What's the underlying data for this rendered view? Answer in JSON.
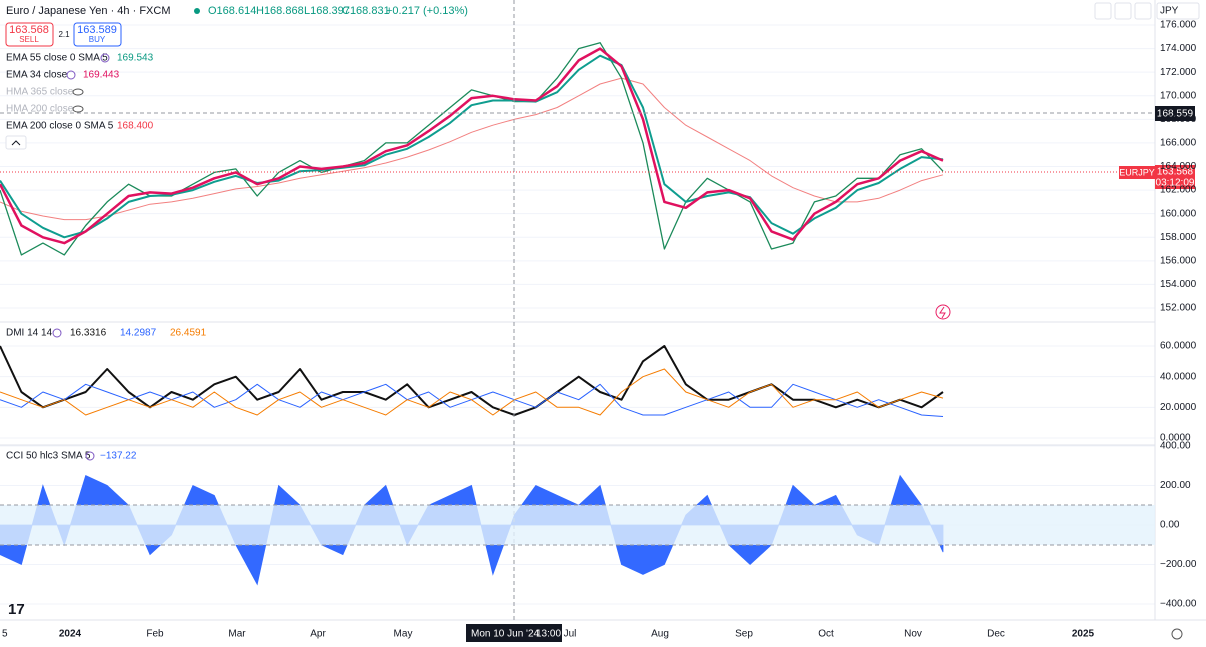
{
  "header": {
    "symbol": "Euro / Japanese Yen · 4h · FXCM",
    "open": "O168.614",
    "high": "H168.868",
    "low": "L168.397",
    "close": "C168.831",
    "change": "+0.217 (+0.13%)"
  },
  "trade": {
    "sell_price": "163.568",
    "sell": "SELL",
    "spread": "2.1",
    "buy_price": "163.589",
    "buy": "BUY"
  },
  "indicators": [
    {
      "label": "EMA 55 close 0 SMA 5",
      "value": "169.543"
    },
    {
      "label": "EMA 34 close",
      "value": "169.443"
    },
    {
      "label": "HMA 365 close"
    },
    {
      "label": "HMA 200 close"
    },
    {
      "label": "EMA 200 close 0 SMA 5",
      "value": "168.400"
    }
  ],
  "currency": "JPY",
  "price_pane": {
    "ticks": [
      {
        "value": 176,
        "label": "176.000"
      },
      {
        "value": 174,
        "label": "174.000"
      },
      {
        "value": 172,
        "label": "172.000"
      },
      {
        "value": 170,
        "label": "170.000"
      },
      {
        "value": 168,
        "label": "168.000"
      },
      {
        "value": 166,
        "label": "166.000"
      },
      {
        "value": 164,
        "label": "164.000"
      },
      {
        "value": 162,
        "label": "162.000"
      },
      {
        "value": 160,
        "label": "160.000"
      },
      {
        "value": 158,
        "label": "158.000"
      },
      {
        "value": 156,
        "label": "156.000"
      },
      {
        "value": 154,
        "label": "154.000"
      },
      {
        "value": 152,
        "label": "152.000"
      }
    ],
    "series": [
      {
        "color": "#f28080",
        "values": [
          161,
          160.2,
          159.8,
          159.5,
          159.5,
          159.8,
          160.3,
          160.8,
          161,
          161.3,
          161.7,
          162.1,
          162.3,
          162.6,
          163,
          163.3,
          163.6,
          163.9,
          164.3,
          164.8,
          165.4,
          166.1,
          166.9,
          167.5,
          168,
          168.4,
          169,
          170,
          171,
          171.5,
          171,
          169,
          167.5,
          166.5,
          165.5,
          164.5,
          163.2,
          162.2,
          161.5,
          161,
          161,
          161.3,
          162,
          162.8,
          163.3
        ]
      },
      {
        "color": "#1b8a5a",
        "values": [
          162,
          156.5,
          157.5,
          156.5,
          159,
          161,
          162.5,
          161.5,
          161.5,
          162.5,
          163.5,
          163.8,
          161.5,
          163.5,
          164.5,
          163.5,
          164,
          164.5,
          166,
          166,
          167.5,
          169,
          170.5,
          170,
          169.5,
          169.5,
          171.5,
          174,
          174.5,
          171.5,
          166,
          157,
          161,
          163,
          162,
          161,
          157,
          157.5,
          161,
          161.5,
          163,
          163,
          165,
          165.5,
          163.6
        ]
      },
      {
        "color": "#0f9d8f",
        "values": [
          162.8,
          160,
          158.8,
          158,
          158.5,
          159.6,
          161,
          161.5,
          161.6,
          162,
          162.7,
          163.2,
          162.6,
          162.8,
          163.6,
          163.7,
          163.9,
          164.1,
          165,
          165.5,
          166.5,
          167.7,
          169.2,
          169.6,
          169.6,
          169.5,
          170.3,
          172.2,
          173.4,
          172.6,
          169,
          162.5,
          161,
          161.5,
          161.8,
          161.4,
          159.2,
          158.3,
          159.6,
          160.5,
          162,
          162.6,
          163.8,
          164.8,
          164.6
        ]
      },
      {
        "color": "#e0115f",
        "values": [
          162.5,
          159,
          158,
          157.5,
          158.5,
          160,
          161.5,
          161.8,
          161.7,
          162.2,
          163,
          163.5,
          162.5,
          163,
          164,
          163.8,
          164,
          164.3,
          165.3,
          165.8,
          167,
          168.3,
          169.8,
          170,
          169.7,
          169.6,
          170.8,
          173,
          174,
          172.5,
          168,
          161,
          160.5,
          161.8,
          162,
          161.3,
          158.5,
          157.8,
          160,
          161,
          162.5,
          163,
          164.5,
          165.3,
          164.5
        ]
      }
    ],
    "crosshair_price": "168.559",
    "symbol_tag": "EURJPY",
    "last_price": "163.568",
    "countdown": "03:12:09"
  },
  "dmi_pane": {
    "label": "DMI 14 14",
    "values": [
      "16.3316",
      "14.2987",
      "26.4591"
    ],
    "ticks": [
      {
        "value": 60,
        "label": "60.0000"
      },
      {
        "value": 40,
        "label": "40.0000"
      },
      {
        "value": 20,
        "label": "20.0000"
      },
      {
        "value": 0,
        "label": "0.0000"
      }
    ],
    "series": [
      {
        "color": "#111111",
        "values": [
          60,
          30,
          20,
          25,
          30,
          45,
          30,
          20,
          30,
          25,
          35,
          40,
          25,
          30,
          45,
          25,
          30,
          30,
          25,
          35,
          20,
          25,
          30,
          20,
          15,
          20,
          30,
          40,
          30,
          25,
          50,
          60,
          35,
          25,
          25,
          30,
          35,
          25,
          25,
          20,
          25,
          20,
          25,
          20,
          30
        ]
      },
      {
        "color": "#2962ff",
        "values": [
          25,
          20,
          30,
          25,
          35,
          30,
          25,
          30,
          25,
          30,
          20,
          25,
          35,
          25,
          20,
          30,
          25,
          30,
          35,
          25,
          30,
          20,
          25,
          30,
          25,
          20,
          30,
          25,
          35,
          20,
          15,
          15,
          20,
          25,
          30,
          20,
          20,
          35,
          30,
          25,
          20,
          25,
          20,
          15,
          14
        ]
      },
      {
        "color": "#f57c00",
        "values": [
          30,
          25,
          20,
          25,
          15,
          20,
          25,
          20,
          25,
          20,
          30,
          20,
          15,
          25,
          30,
          20,
          25,
          20,
          15,
          25,
          20,
          30,
          25,
          15,
          25,
          30,
          20,
          20,
          15,
          30,
          40,
          45,
          30,
          25,
          20,
          30,
          35,
          20,
          25,
          25,
          30,
          20,
          25,
          30,
          26
        ]
      }
    ]
  },
  "cci_pane": {
    "label": "CCI 50 hlc3 SMA 5",
    "value": "−137.22",
    "color": "#2962ff",
    "ticks": [
      {
        "value": 400,
        "label": "400.00"
      },
      {
        "value": 200,
        "label": "200.00"
      },
      {
        "value": 0,
        "label": "0.00"
      },
      {
        "value": -200,
        "label": "−200.00"
      },
      {
        "value": -400,
        "label": "−400.00"
      }
    ],
    "values": [
      -150,
      -200,
      200,
      -100,
      250,
      200,
      100,
      -150,
      -50,
      200,
      150,
      -100,
      -300,
      200,
      100,
      -100,
      -150,
      100,
      200,
      -100,
      100,
      150,
      200,
      -250,
      50,
      200,
      150,
      100,
      200,
      -200,
      -250,
      -200,
      50,
      150,
      -100,
      -200,
      -100,
      200,
      100,
      150,
      -50,
      -100,
      250,
      100,
      -137.22
    ]
  },
  "time_axis": {
    "labels": [
      "5",
      "2024",
      "Feb",
      "Mar",
      "Apr",
      "May",
      "Jul",
      "Aug",
      "Sep",
      "Oct",
      "Nov",
      "Dec",
      "2025"
    ],
    "crosshair": "Mon 10 Jun '24",
    "crosshair_time": "13:00"
  }
}
